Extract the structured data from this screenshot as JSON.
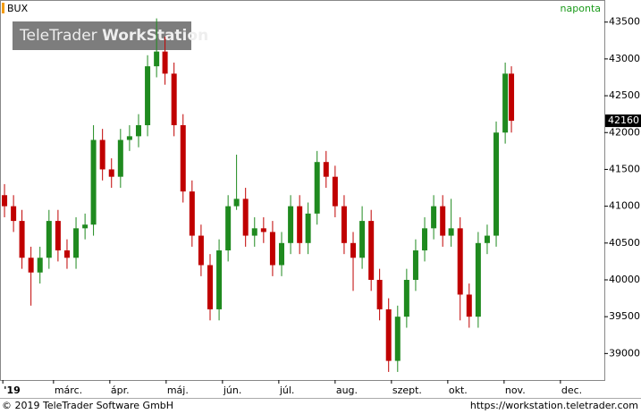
{
  "chart_data": {
    "type": "candlestick",
    "symbol": "BUX",
    "period": "naponta",
    "watermark": [
      "TeleTrader",
      "WorkStation"
    ],
    "footer_left": "© 2019 TeleTrader Software GmbH",
    "footer_right": "https://workstation.teletrader.com",
    "up_color": "#1f8a1f",
    "down_color": "#c00000",
    "x": [
      1.13,
      1.29,
      1.44,
      1.6,
      1.76,
      1.92,
      2.08,
      2.24,
      2.4,
      2.56,
      2.71,
      2.87,
      3.03,
      3.19,
      3.35,
      3.51,
      3.67,
      3.83,
      3.98,
      4.14,
      4.3,
      4.46,
      4.62,
      4.78,
      4.94,
      5.1,
      5.25,
      5.41,
      5.57,
      5.73,
      5.89,
      6.05,
      6.21,
      6.37,
      6.52,
      6.68,
      6.84,
      7.0,
      7.16,
      7.32,
      7.48,
      7.64,
      7.79,
      7.95,
      8.11,
      8.27,
      8.43,
      8.59,
      8.75,
      8.91,
      9.06,
      9.22,
      9.38,
      9.54,
      9.7,
      9.86,
      10.02,
      10.13
    ],
    "open": [
      41150,
      41000,
      40800,
      40300,
      40100,
      40300,
      40800,
      40400,
      40300,
      40700,
      40750,
      41900,
      41500,
      41400,
      41900,
      41950,
      42100,
      42900,
      43100,
      42800,
      42100,
      41200,
      40600,
      40200,
      39600,
      40400,
      41000,
      41100,
      40600,
      40700,
      40650,
      40200,
      40500,
      41000,
      40500,
      40900,
      41600,
      41400,
      41000,
      40500,
      40300,
      40800,
      40000,
      39600,
      38900,
      39500,
      40000,
      40400,
      40700,
      41000,
      40600,
      40700,
      39800,
      39500,
      40500,
      40600,
      42000,
      42800
    ],
    "high": [
      41300,
      41150,
      40950,
      40450,
      40450,
      40950,
      40950,
      40550,
      40850,
      40900,
      42100,
      42050,
      41650,
      42050,
      42100,
      42250,
      43050,
      43550,
      43300,
      42950,
      42250,
      41350,
      40750,
      40350,
      40550,
      41150,
      41700,
      41250,
      40850,
      40850,
      40800,
      40650,
      41150,
      41150,
      41050,
      41750,
      41750,
      41550,
      41150,
      40650,
      41000,
      40950,
      40150,
      39750,
      39650,
      40150,
      40550,
      40850,
      41150,
      41150,
      41100,
      40850,
      39950,
      40650,
      40750,
      42150,
      42950,
      42900
    ],
    "low": [
      40850,
      40650,
      40150,
      39650,
      39950,
      40150,
      40250,
      40150,
      40150,
      40550,
      40600,
      41350,
      41250,
      41250,
      41750,
      41800,
      41950,
      42750,
      42650,
      41950,
      41050,
      40450,
      40050,
      39450,
      39450,
      40250,
      40950,
      40450,
      40450,
      40500,
      40050,
      40050,
      40350,
      40350,
      40350,
      40750,
      41250,
      40850,
      40350,
      39850,
      40150,
      39850,
      39450,
      38750,
      38750,
      39350,
      39850,
      40250,
      40550,
      40450,
      40450,
      39450,
      39350,
      39350,
      40350,
      40450,
      41850,
      42000
    ],
    "close": [
      41000,
      40800,
      40300,
      40100,
      40300,
      40800,
      40400,
      40300,
      40700,
      40750,
      41900,
      41500,
      41400,
      41900,
      41950,
      42100,
      42900,
      43100,
      42800,
      42100,
      41200,
      40600,
      40200,
      39600,
      40400,
      41000,
      41100,
      40600,
      40700,
      40650,
      40200,
      40500,
      41000,
      40500,
      40900,
      41600,
      41400,
      41000,
      40500,
      40300,
      40800,
      40000,
      39600,
      38900,
      39500,
      40000,
      40400,
      40700,
      41000,
      40600,
      40700,
      39800,
      39500,
      40500,
      40600,
      42000,
      42800,
      42160
    ],
    "xlim": [
      1.05,
      11.78
    ],
    "xticks": [
      {
        "value": 1.1,
        "label": "'19"
      },
      {
        "value": 2,
        "label": "márc."
      },
      {
        "value": 3,
        "label": "ápr."
      },
      {
        "value": 4,
        "label": "máj."
      },
      {
        "value": 5,
        "label": "jún."
      },
      {
        "value": 6,
        "label": "júl."
      },
      {
        "value": 7,
        "label": "aug."
      },
      {
        "value": 8,
        "label": "szept."
      },
      {
        "value": 9,
        "label": "okt."
      },
      {
        "value": 10,
        "label": "nov."
      },
      {
        "value": 11,
        "label": "dec."
      }
    ],
    "ylim": [
      38640,
      43630
    ],
    "yticks": [
      39000,
      39500,
      40000,
      40500,
      41000,
      41500,
      42000,
      42500,
      43000,
      43500
    ],
    "grid": false
  }
}
